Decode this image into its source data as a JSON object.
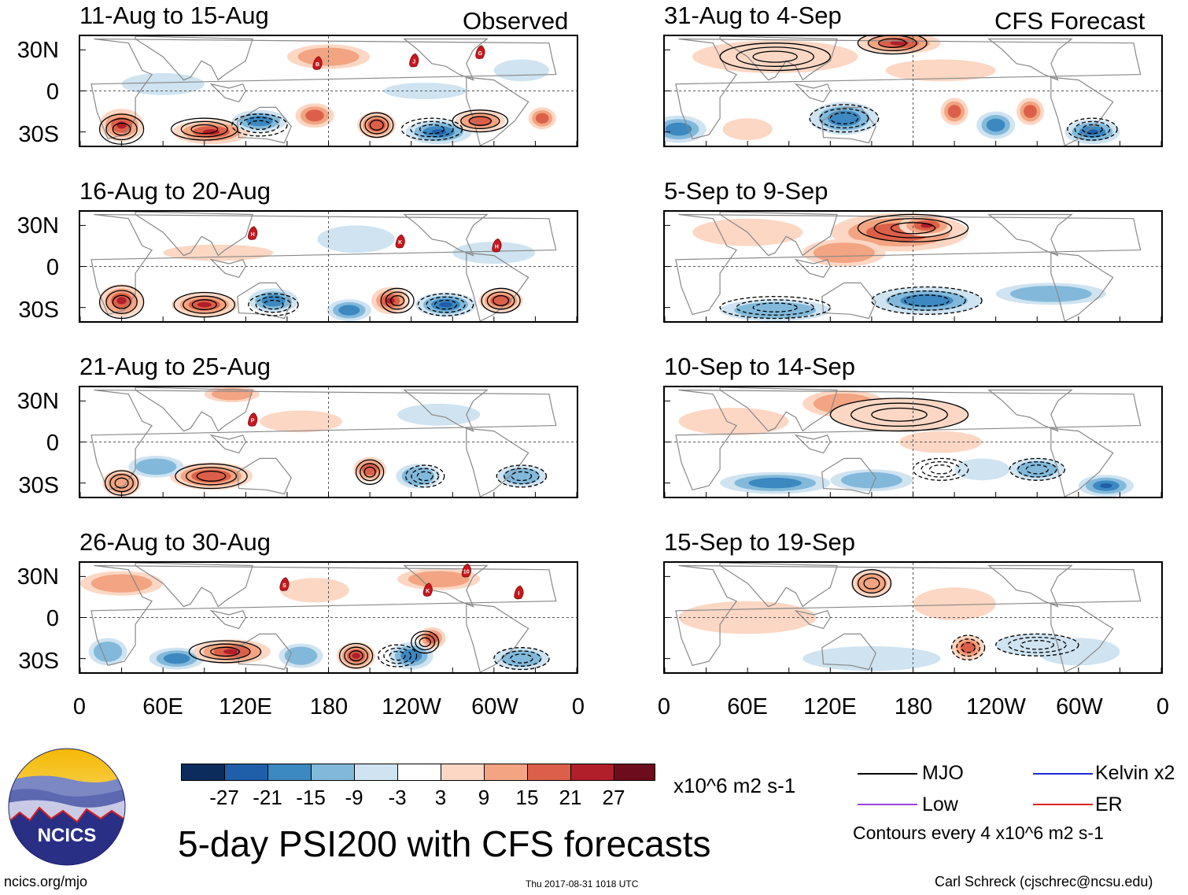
{
  "observed_tag": "Observed",
  "forecast_tag": "CFS Forecast",
  "panels": [
    {
      "title": "11-Aug to 15-Aug"
    },
    {
      "title": "16-Aug to 20-Aug"
    },
    {
      "title": "21-Aug to 25-Aug"
    },
    {
      "title": "26-Aug to 30-Aug"
    },
    {
      "title": "31-Aug to 4-Sep"
    },
    {
      "title": "5-Sep to 9-Sep"
    },
    {
      "title": "10-Sep to 14-Sep"
    },
    {
      "title": "15-Sep to 19-Sep"
    }
  ],
  "lat_labels": [
    "30N",
    "0",
    "30S"
  ],
  "lon_labels": [
    "0",
    "60E",
    "120E",
    "180",
    "120W",
    "60W",
    "0"
  ],
  "colorbar": {
    "colors": [
      "#0b2c5c",
      "#1f5ea8",
      "#3c88c0",
      "#82b9da",
      "#cfe3f1",
      "#ffffff",
      "#fbd7c4",
      "#f3a482",
      "#dc6049",
      "#b01f2a",
      "#6d0c1c"
    ],
    "labels": [
      "-27",
      "-21",
      "-15",
      "-9",
      "-3",
      "3",
      "9",
      "15",
      "21",
      "27"
    ],
    "units": "x10^6 m2 s-1"
  },
  "main_title": "5-day PSI200 with CFS forecasts",
  "legend": {
    "items": [
      {
        "label": "MJO",
        "color": "#000000"
      },
      {
        "label": "Kelvin x2",
        "color": "#1d2bd6"
      },
      {
        "label": "Low",
        "color": "#a040e0"
      },
      {
        "label": "ER",
        "color": "#e02020"
      }
    ],
    "contour_note": "Contours every 4 x10^6 m2 s-1"
  },
  "logo_text": "NCICS",
  "footer": {
    "left": "ncics.org/mjo",
    "center": "Thu 2017-08-31 1018 UTC",
    "right": "Carl Schreck (cjschrec@ncsu.edu)"
  },
  "storm_markers": [
    {
      "panel": 0,
      "label": "B",
      "lon": 172,
      "lat": 20
    },
    {
      "panel": 0,
      "label": "J",
      "lon": 242,
      "lat": 22
    },
    {
      "panel": 0,
      "label": "G",
      "lon": 290,
      "lat": 28
    },
    {
      "panel": 1,
      "label": "H",
      "lon": 125,
      "lat": 24
    },
    {
      "panel": 1,
      "label": "K",
      "lon": 232,
      "lat": 18
    },
    {
      "panel": 1,
      "label": "H",
      "lon": 302,
      "lat": 15
    },
    {
      "panel": 2,
      "label": "P",
      "lon": 125,
      "lat": 16
    },
    {
      "panel": 3,
      "label": "S",
      "lon": 148,
      "lat": 24
    },
    {
      "panel": 3,
      "label": "K",
      "lon": 252,
      "lat": 20
    },
    {
      "panel": 3,
      "label": "10",
      "lon": 280,
      "lat": 34
    },
    {
      "panel": 3,
      "label": "I",
      "lon": 318,
      "lat": 18
    }
  ]
}
